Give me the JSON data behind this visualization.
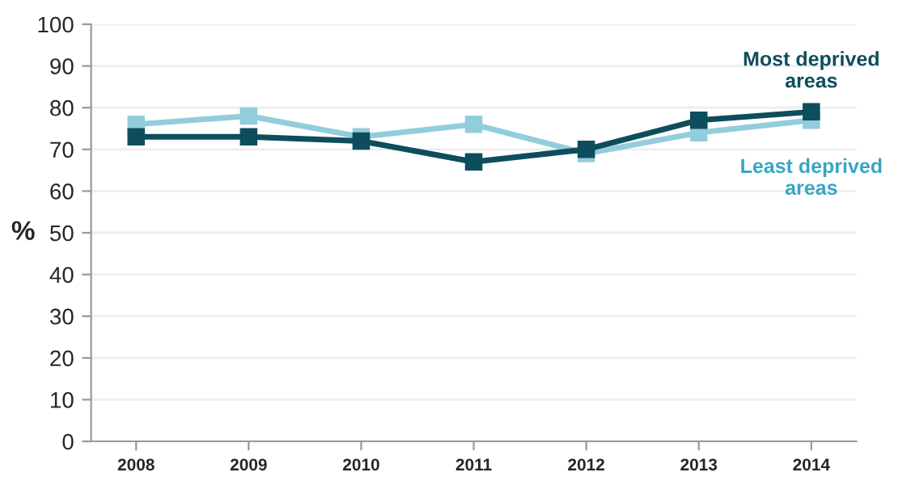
{
  "chart_data": {
    "type": "line",
    "categories": [
      "2008",
      "2009",
      "2010",
      "2011",
      "2012",
      "2013",
      "2014"
    ],
    "ylabel": "%",
    "series": [
      {
        "name": "Most deprived areas",
        "color": "#0e4d5c",
        "values": [
          73,
          73,
          72,
          67,
          70,
          77,
          79
        ]
      },
      {
        "name": "Least deprived areas",
        "color": "#92cddc",
        "values": [
          76,
          78,
          73,
          76,
          69,
          74,
          77
        ]
      }
    ],
    "ylim": [
      0,
      100
    ],
    "yticks": [
      0,
      10,
      20,
      30,
      40,
      50,
      60,
      70,
      80,
      90,
      100
    ],
    "grid": "y",
    "marker": "square",
    "line_style": "solid",
    "legend": false
  }
}
